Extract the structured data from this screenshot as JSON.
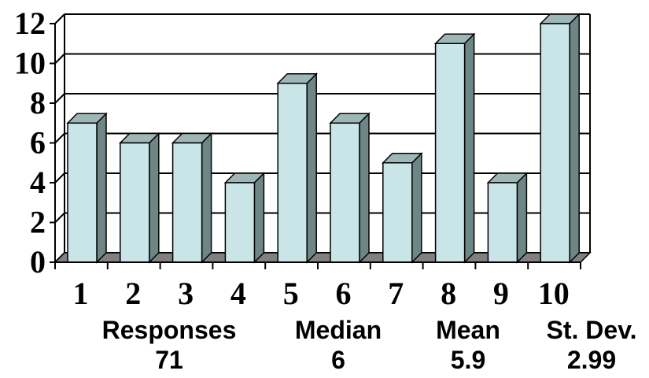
{
  "chart_data": {
    "type": "bar",
    "categories": [
      "1",
      "2",
      "3",
      "4",
      "5",
      "6",
      "7",
      "8",
      "9",
      "10"
    ],
    "values": [
      7,
      6,
      6,
      4,
      9,
      7,
      5,
      11,
      4,
      12
    ],
    "yticks": [
      "0",
      "2",
      "4",
      "6",
      "8",
      "10",
      "12"
    ],
    "ylim": [
      0,
      12
    ],
    "grid": true,
    "style": "3d",
    "colors": {
      "bar_face": "#c9e5e8",
      "bar_side": "#6f8686",
      "bar_top": "#9fb6b6",
      "floor": "#808080",
      "grid": "#000000"
    }
  },
  "stats": [
    {
      "label": "Responses",
      "value": "71"
    },
    {
      "label": "Median",
      "value": "6"
    },
    {
      "label": "Mean",
      "value": "5.9"
    },
    {
      "label": "St. Dev.",
      "value": "2.99"
    }
  ]
}
